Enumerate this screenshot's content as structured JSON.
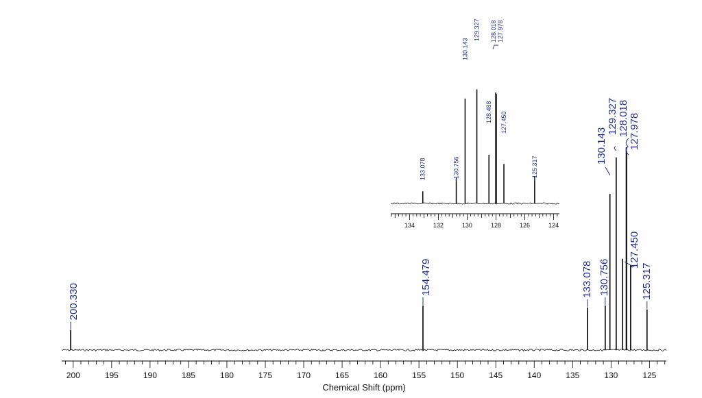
{
  "chart_data": [
    {
      "type": "line",
      "xlabel": "Chemical Shift (ppm)",
      "ylabel": "",
      "xlim": [
        201.5,
        122.8
      ],
      "x_reversed": true,
      "xticks": [
        200,
        195,
        190,
        185,
        180,
        175,
        170,
        165,
        160,
        155,
        150,
        145,
        140,
        135,
        130,
        125
      ],
      "peaks": [
        {
          "shift": 200.33,
          "label": "200.330",
          "height": 0.1
        },
        {
          "shift": 154.479,
          "label": "154.479",
          "height": 0.22
        },
        {
          "shift": 133.078,
          "label": "133.078",
          "height": 0.21
        },
        {
          "shift": 130.756,
          "label": "130.756",
          "height": 0.22
        },
        {
          "shift": 130.143,
          "label": "130.143",
          "height": 0.77
        },
        {
          "shift": 129.327,
          "label": "129.327",
          "height": 0.95
        },
        {
          "shift": 128.488,
          "label": "",
          "height": 0.45
        },
        {
          "shift": 128.018,
          "label": "128.018",
          "height": 1.0
        },
        {
          "shift": 127.978,
          "label": "127.978",
          "height": 0.98
        },
        {
          "shift": 127.45,
          "label": "127.450",
          "height": 0.42
        },
        {
          "shift": 125.317,
          "label": "125.317",
          "height": 0.2
        }
      ],
      "labeled_groups": [
        "133.078",
        "130.756",
        "130.143",
        "129.327",
        "128.018",
        "127.978",
        "127.450",
        "125.317"
      ]
    },
    {
      "type": "line",
      "title": "",
      "xlim": [
        135.3,
        123.6
      ],
      "x_reversed": true,
      "xticks": [
        134,
        132,
        130,
        128,
        126,
        124
      ],
      "peaks": [
        {
          "shift": 133.078,
          "label": "133.078",
          "height": 0.08
        },
        {
          "shift": 130.756,
          "label": "130.756",
          "height": 0.17
        },
        {
          "shift": 130.143,
          "label": "130.143",
          "height": 0.69
        },
        {
          "shift": 129.327,
          "label": "129.327",
          "height": 0.75
        },
        {
          "shift": 128.488,
          "label": "128.488",
          "height": 0.32
        },
        {
          "shift": 128.018,
          "label": "128.018",
          "height": 0.73
        },
        {
          "shift": 127.978,
          "label": "127.978",
          "height": 0.72
        },
        {
          "shift": 127.45,
          "label": "127.450",
          "height": 0.26
        },
        {
          "shift": 125.317,
          "label": "125.317",
          "height": 0.18
        }
      ]
    }
  ]
}
